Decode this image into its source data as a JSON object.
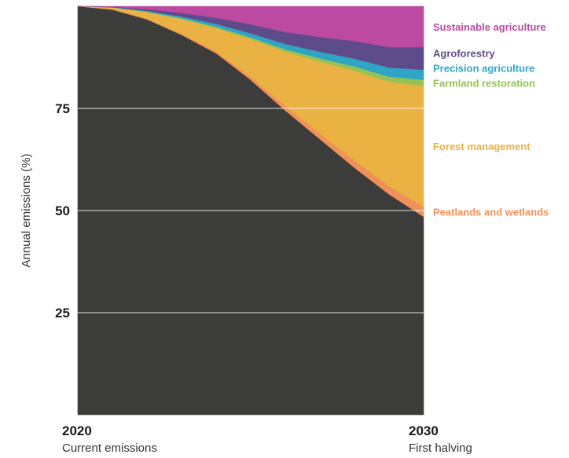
{
  "chart_data": {
    "type": "area",
    "stacked": true,
    "ylabel": "Annual emissions (%)",
    "xlim": [
      2020,
      2030
    ],
    "ylim": [
      0,
      100
    ],
    "y_ticks": [
      25,
      50,
      75
    ],
    "grid": true,
    "x_ticks": [
      {
        "year": "2020",
        "caption": "Current emissions",
        "value": 2020
      },
      {
        "year": "2030",
        "caption": "First halving",
        "value": 2030
      }
    ],
    "x": [
      2020,
      2021,
      2022,
      2023,
      2024,
      2025,
      2026,
      2027,
      2028,
      2029,
      2030
    ],
    "residual": {
      "color": "#3c3c3a",
      "values": [
        100,
        99.2,
        96.8,
        93.0,
        88.5,
        82.0,
        74.5,
        67.5,
        60.5,
        54.0,
        48.5
      ]
    },
    "series": [
      {
        "name": "Peatlands and wetlands",
        "color": "#f0915a",
        "values": [
          0,
          0.1,
          0.2,
          0.3,
          0.5,
          0.8,
          1.1,
          1.4,
          1.8,
          2.0,
          2.5
        ]
      },
      {
        "name": "Forest management",
        "color": "#eab143",
        "values": [
          0,
          0.4,
          1.6,
          3.6,
          5.7,
          9.2,
          13.3,
          17.6,
          22.0,
          25.6,
          29.5
        ]
      },
      {
        "name": "Farmland restoration",
        "color": "#92c354",
        "values": [
          0,
          0.05,
          0.1,
          0.2,
          0.3,
          0.4,
          0.6,
          0.8,
          1.0,
          1.2,
          1.5
        ]
      },
      {
        "name": "Precision agriculture",
        "color": "#2fa5c5",
        "values": [
          0,
          0.05,
          0.2,
          0.4,
          0.7,
          1.0,
          1.3,
          1.6,
          1.9,
          2.2,
          2.5
        ]
      },
      {
        "name": "Agroforestry",
        "color": "#5e4c8a",
        "values": [
          0,
          0.1,
          0.4,
          0.9,
          1.5,
          2.2,
          2.9,
          3.6,
          4.3,
          5.0,
          5.5
        ]
      },
      {
        "name": "Sustainable agriculture",
        "color": "#bb4aa0",
        "values": [
          0,
          0.1,
          0.7,
          1.6,
          2.8,
          4.4,
          6.3,
          7.5,
          8.5,
          10.0,
          10.0
        ]
      }
    ]
  }
}
